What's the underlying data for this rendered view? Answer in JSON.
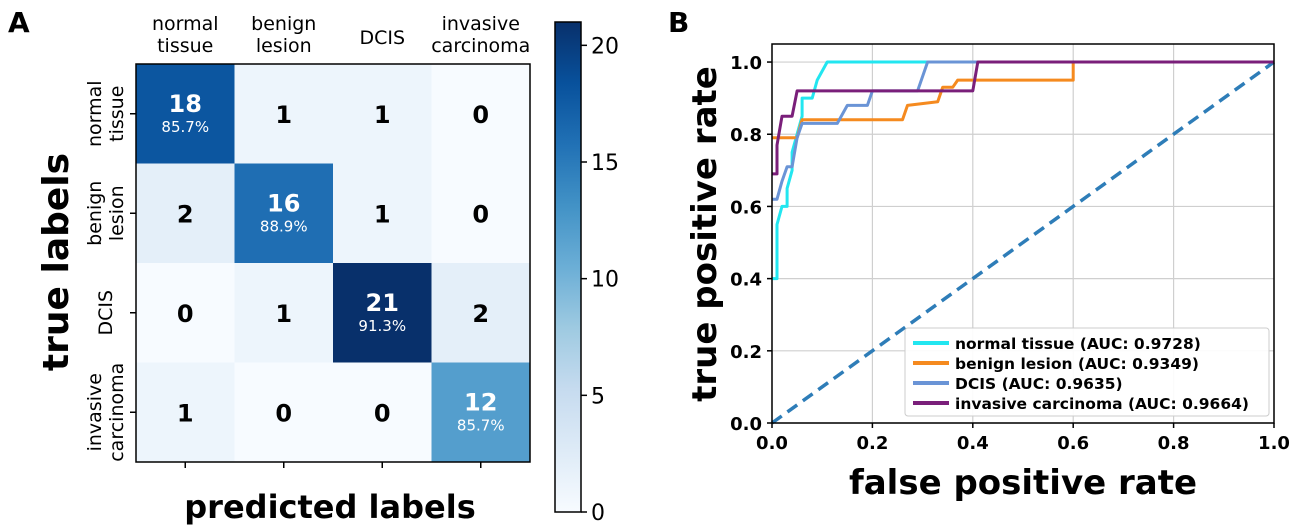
{
  "chart_data": [
    {
      "panel_label": "A",
      "type": "heatmap",
      "xlabel": "predicted labels",
      "ylabel": "true labels",
      "x_categories": [
        [
          "normal",
          "tissue"
        ],
        [
          "benign",
          "lesion"
        ],
        [
          "DCIS"
        ],
        [
          "invasive",
          "carcinoma"
        ]
      ],
      "y_categories": [
        [
          "normal",
          "tissue"
        ],
        [
          "benign",
          "lesion"
        ],
        [
          "DCIS"
        ],
        [
          "invasive",
          "carcinoma"
        ]
      ],
      "matrix": [
        [
          18,
          1,
          1,
          0
        ],
        [
          2,
          16,
          1,
          0
        ],
        [
          0,
          1,
          21,
          2
        ],
        [
          1,
          0,
          0,
          12
        ]
      ],
      "diagonal_percent": [
        "85.7%",
        "88.9%",
        "91.3%",
        "85.7%"
      ],
      "colorbar": {
        "min": 0,
        "max": 21,
        "ticks": [
          0,
          5,
          10,
          15,
          20
        ]
      }
    },
    {
      "panel_label": "B",
      "type": "line",
      "xlabel": "false positive rate",
      "ylabel": "true positive rate",
      "xlim": [
        0,
        1
      ],
      "ylim": [
        0,
        1.05
      ],
      "xticks": [
        "0.0",
        "0.2",
        "0.4",
        "0.6",
        "0.8",
        "1.0"
      ],
      "yticks": [
        "0.0",
        "0.2",
        "0.4",
        "0.6",
        "0.8",
        "1.0"
      ],
      "grid": true,
      "legend_position": "lower-right",
      "series": [
        {
          "name": "normal tissue (AUC: 0.9728)",
          "color": "#22e6f0",
          "points": [
            [
              0,
              0.4
            ],
            [
              0.01,
              0.4
            ],
            [
              0.01,
              0.55
            ],
            [
              0.02,
              0.6
            ],
            [
              0.03,
              0.6
            ],
            [
              0.03,
              0.65
            ],
            [
              0.04,
              0.7
            ],
            [
              0.04,
              0.75
            ],
            [
              0.05,
              0.8
            ],
            [
              0.06,
              0.85
            ],
            [
              0.06,
              0.9
            ],
            [
              0.08,
              0.9
            ],
            [
              0.09,
              0.95
            ],
            [
              0.11,
              1.0
            ],
            [
              1,
              1.0
            ]
          ]
        },
        {
          "name": "benign lesion (AUC: 0.9349)",
          "color": "#f58a1f",
          "points": [
            [
              0,
              0.79
            ],
            [
              0.05,
              0.79
            ],
            [
              0.06,
              0.84
            ],
            [
              0.26,
              0.84
            ],
            [
              0.27,
              0.88
            ],
            [
              0.33,
              0.89
            ],
            [
              0.34,
              0.93
            ],
            [
              0.36,
              0.93
            ],
            [
              0.37,
              0.95
            ],
            [
              0.6,
              0.95
            ],
            [
              0.6,
              1.0
            ],
            [
              1,
              1.0
            ]
          ]
        },
        {
          "name": "DCIS (AUC: 0.9635)",
          "color": "#6a94d6",
          "points": [
            [
              0,
              0.62
            ],
            [
              0.01,
              0.62
            ],
            [
              0.02,
              0.67
            ],
            [
              0.03,
              0.71
            ],
            [
              0.04,
              0.71
            ],
            [
              0.05,
              0.79
            ],
            [
              0.06,
              0.83
            ],
            [
              0.13,
              0.83
            ],
            [
              0.15,
              0.88
            ],
            [
              0.19,
              0.88
            ],
            [
              0.2,
              0.92
            ],
            [
              0.29,
              0.92
            ],
            [
              0.31,
              1.0
            ],
            [
              1,
              1.0
            ]
          ]
        },
        {
          "name": "invasive carcinoma (AUC: 0.9664)",
          "color": "#7a1f7a",
          "points": [
            [
              0,
              0.69
            ],
            [
              0.01,
              0.69
            ],
            [
              0.01,
              0.77
            ],
            [
              0.02,
              0.85
            ],
            [
              0.04,
              0.85
            ],
            [
              0.05,
              0.92
            ],
            [
              0.4,
              0.92
            ],
            [
              0.41,
              1.0
            ],
            [
              1,
              1.0
            ]
          ]
        },
        {
          "name": "",
          "color": "#2e7db8",
          "dashed": true,
          "points": [
            [
              0,
              0
            ],
            [
              1,
              1
            ]
          ]
        }
      ]
    }
  ]
}
